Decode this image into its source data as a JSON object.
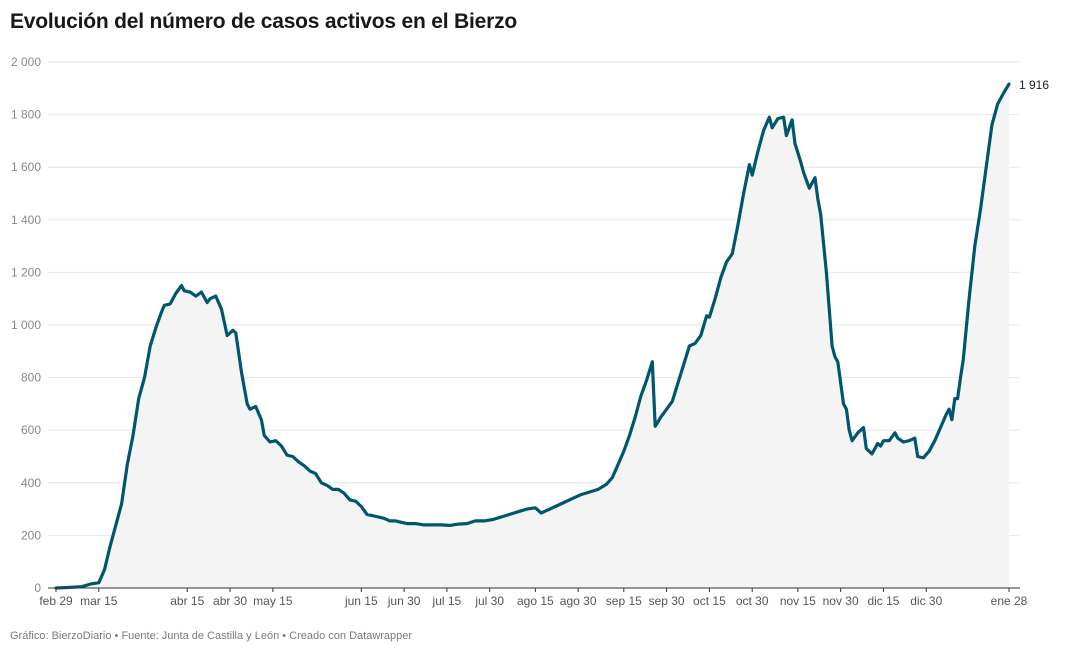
{
  "title": "Evolución del número de casos activos en el Bierzo",
  "footer": {
    "text": "Gráfico: BierzoDiario • Fuente: Junta de Castilla y León • Creado con Datawrapper"
  },
  "colors": {
    "line": "#00566e",
    "area": "#f4f4f4",
    "grid": "#e6e6e6",
    "axis": "#333333"
  },
  "chart_data": {
    "type": "area",
    "title": "Evolución del número de casos activos en el Bierzo",
    "xlabel": "",
    "ylabel": "",
    "ylim": [
      0,
      2000
    ],
    "xlim": [
      "2020-02-29",
      "2021-01-28"
    ],
    "grid": true,
    "legend": "none",
    "y_ticks": [
      0,
      200,
      400,
      600,
      800,
      1000,
      1200,
      1400,
      1600,
      1800,
      2000
    ],
    "y_tick_labels": [
      "0",
      "200",
      "400",
      "600",
      "800",
      "1 000",
      "1 200",
      "1 400",
      "1 600",
      "1 800",
      "2 000"
    ],
    "x_ticks": [
      {
        "date": "2020-02-29",
        "label": "feb 29"
      },
      {
        "date": "2020-03-15",
        "label": "mar 15"
      },
      {
        "date": "2020-04-15",
        "label": "abr 15"
      },
      {
        "date": "2020-04-30",
        "label": "abr 30"
      },
      {
        "date": "2020-05-15",
        "label": "may 15"
      },
      {
        "date": "2020-06-15",
        "label": "jun 15"
      },
      {
        "date": "2020-06-30",
        "label": "jun 30"
      },
      {
        "date": "2020-07-15",
        "label": "jul 15"
      },
      {
        "date": "2020-07-30",
        "label": "jul 30"
      },
      {
        "date": "2020-08-15",
        "label": "ago 15"
      },
      {
        "date": "2020-08-30",
        "label": "ago 30"
      },
      {
        "date": "2020-09-15",
        "label": "sep 15"
      },
      {
        "date": "2020-09-30",
        "label": "sep 30"
      },
      {
        "date": "2020-10-15",
        "label": "oct 15"
      },
      {
        "date": "2020-10-30",
        "label": "oct 30"
      },
      {
        "date": "2020-11-15",
        "label": "nov 15"
      },
      {
        "date": "2020-11-30",
        "label": "nov 30"
      },
      {
        "date": "2020-12-15",
        "label": "dic 15"
      },
      {
        "date": "2020-12-30",
        "label": "dic 30"
      },
      {
        "date": "2021-01-28",
        "label": "ene 28"
      }
    ],
    "end_label": "1 916",
    "series": [
      {
        "values": [
          [
            "2020-02-29",
            0
          ],
          [
            "2020-03-04",
            2
          ],
          [
            "2020-03-09",
            5
          ],
          [
            "2020-03-12",
            15
          ],
          [
            "2020-03-15",
            20
          ],
          [
            "2020-03-17",
            70
          ],
          [
            "2020-03-19",
            160
          ],
          [
            "2020-03-21",
            240
          ],
          [
            "2020-03-23",
            320
          ],
          [
            "2020-03-25",
            470
          ],
          [
            "2020-03-27",
            580
          ],
          [
            "2020-03-29",
            720
          ],
          [
            "2020-03-31",
            800
          ],
          [
            "2020-04-02",
            920
          ],
          [
            "2020-04-04",
            990
          ],
          [
            "2020-04-06",
            1050
          ],
          [
            "2020-04-07",
            1075
          ],
          [
            "2020-04-09",
            1080
          ],
          [
            "2020-04-11",
            1120
          ],
          [
            "2020-04-13",
            1150
          ],
          [
            "2020-04-14",
            1130
          ],
          [
            "2020-04-16",
            1125
          ],
          [
            "2020-04-18",
            1110
          ],
          [
            "2020-04-20",
            1125
          ],
          [
            "2020-04-22",
            1085
          ],
          [
            "2020-04-23",
            1100
          ],
          [
            "2020-04-25",
            1110
          ],
          [
            "2020-04-27",
            1060
          ],
          [
            "2020-04-29",
            960
          ],
          [
            "2020-05-01",
            980
          ],
          [
            "2020-05-02",
            970
          ],
          [
            "2020-05-04",
            820
          ],
          [
            "2020-05-06",
            700
          ],
          [
            "2020-05-07",
            680
          ],
          [
            "2020-05-09",
            690
          ],
          [
            "2020-05-11",
            640
          ],
          [
            "2020-05-12",
            580
          ],
          [
            "2020-05-14",
            555
          ],
          [
            "2020-05-16",
            560
          ],
          [
            "2020-05-18",
            540
          ],
          [
            "2020-05-20",
            505
          ],
          [
            "2020-05-22",
            500
          ],
          [
            "2020-05-24",
            480
          ],
          [
            "2020-05-26",
            465
          ],
          [
            "2020-05-28",
            445
          ],
          [
            "2020-05-30",
            435
          ],
          [
            "2020-06-01",
            400
          ],
          [
            "2020-06-03",
            390
          ],
          [
            "2020-06-05",
            375
          ],
          [
            "2020-06-07",
            375
          ],
          [
            "2020-06-09",
            360
          ],
          [
            "2020-06-11",
            335
          ],
          [
            "2020-06-13",
            330
          ],
          [
            "2020-06-15",
            310
          ],
          [
            "2020-06-17",
            280
          ],
          [
            "2020-06-19",
            275
          ],
          [
            "2020-06-21",
            270
          ],
          [
            "2020-06-23",
            265
          ],
          [
            "2020-06-25",
            255
          ],
          [
            "2020-06-27",
            255
          ],
          [
            "2020-06-29",
            250
          ],
          [
            "2020-07-01",
            245
          ],
          [
            "2020-07-04",
            245
          ],
          [
            "2020-07-07",
            240
          ],
          [
            "2020-07-10",
            240
          ],
          [
            "2020-07-13",
            240
          ],
          [
            "2020-07-16",
            238
          ],
          [
            "2020-07-19",
            243
          ],
          [
            "2020-07-22",
            245
          ],
          [
            "2020-07-25",
            255
          ],
          [
            "2020-07-28",
            255
          ],
          [
            "2020-07-31",
            260
          ],
          [
            "2020-08-03",
            270
          ],
          [
            "2020-08-06",
            280
          ],
          [
            "2020-08-09",
            290
          ],
          [
            "2020-08-12",
            300
          ],
          [
            "2020-08-15",
            305
          ],
          [
            "2020-08-17",
            285
          ],
          [
            "2020-08-19",
            295
          ],
          [
            "2020-08-22",
            310
          ],
          [
            "2020-08-25",
            325
          ],
          [
            "2020-08-28",
            340
          ],
          [
            "2020-08-31",
            355
          ],
          [
            "2020-09-03",
            365
          ],
          [
            "2020-09-06",
            375
          ],
          [
            "2020-09-09",
            395
          ],
          [
            "2020-09-11",
            420
          ],
          [
            "2020-09-13",
            470
          ],
          [
            "2020-09-15",
            520
          ],
          [
            "2020-09-17",
            580
          ],
          [
            "2020-09-19",
            650
          ],
          [
            "2020-09-21",
            730
          ],
          [
            "2020-09-23",
            790
          ],
          [
            "2020-09-25",
            860
          ],
          [
            "2020-09-26",
            615
          ],
          [
            "2020-09-28",
            650
          ],
          [
            "2020-09-30",
            680
          ],
          [
            "2020-10-02",
            710
          ],
          [
            "2020-10-04",
            780
          ],
          [
            "2020-10-06",
            850
          ],
          [
            "2020-10-08",
            920
          ],
          [
            "2020-10-10",
            930
          ],
          [
            "2020-10-12",
            960
          ],
          [
            "2020-10-14",
            1035
          ],
          [
            "2020-10-15",
            1030
          ],
          [
            "2020-10-17",
            1100
          ],
          [
            "2020-10-19",
            1180
          ],
          [
            "2020-10-21",
            1240
          ],
          [
            "2020-10-23",
            1270
          ],
          [
            "2020-10-25",
            1380
          ],
          [
            "2020-10-27",
            1500
          ],
          [
            "2020-10-29",
            1610
          ],
          [
            "2020-10-30",
            1570
          ],
          [
            "2020-11-01",
            1660
          ],
          [
            "2020-11-03",
            1740
          ],
          [
            "2020-11-05",
            1790
          ],
          [
            "2020-11-06",
            1750
          ],
          [
            "2020-11-08",
            1785
          ],
          [
            "2020-11-10",
            1790
          ],
          [
            "2020-11-11",
            1720
          ],
          [
            "2020-11-13",
            1780
          ],
          [
            "2020-11-14",
            1690
          ],
          [
            "2020-11-16",
            1620
          ],
          [
            "2020-11-17",
            1580
          ],
          [
            "2020-11-19",
            1520
          ],
          [
            "2020-11-21",
            1560
          ],
          [
            "2020-11-22",
            1480
          ],
          [
            "2020-11-23",
            1420
          ],
          [
            "2020-11-25",
            1200
          ],
          [
            "2020-11-27",
            920
          ],
          [
            "2020-11-28",
            880
          ],
          [
            "2020-11-29",
            860
          ],
          [
            "2020-12-01",
            700
          ],
          [
            "2020-12-02",
            680
          ],
          [
            "2020-12-03",
            600
          ],
          [
            "2020-12-04",
            560
          ],
          [
            "2020-12-06",
            590
          ],
          [
            "2020-12-08",
            610
          ],
          [
            "2020-12-09",
            530
          ],
          [
            "2020-12-11",
            510
          ],
          [
            "2020-12-13",
            550
          ],
          [
            "2020-12-14",
            540
          ],
          [
            "2020-12-15",
            560
          ],
          [
            "2020-12-17",
            560
          ],
          [
            "2020-12-19",
            590
          ],
          [
            "2020-12-20",
            570
          ],
          [
            "2020-12-22",
            555
          ],
          [
            "2020-12-24",
            560
          ],
          [
            "2020-12-26",
            570
          ],
          [
            "2020-12-27",
            500
          ],
          [
            "2020-12-29",
            495
          ],
          [
            "2020-12-31",
            520
          ],
          [
            "2021-01-02",
            560
          ],
          [
            "2021-01-04",
            610
          ],
          [
            "2021-01-06",
            660
          ],
          [
            "2021-01-07",
            680
          ],
          [
            "2021-01-08",
            640
          ],
          [
            "2021-01-09",
            720
          ],
          [
            "2021-01-10",
            720
          ],
          [
            "2021-01-11",
            800
          ],
          [
            "2021-01-12",
            870
          ],
          [
            "2021-01-14",
            1100
          ],
          [
            "2021-01-16",
            1300
          ],
          [
            "2021-01-18",
            1440
          ],
          [
            "2021-01-20",
            1600
          ],
          [
            "2021-01-22",
            1760
          ],
          [
            "2021-01-24",
            1840
          ],
          [
            "2021-01-26",
            1880
          ],
          [
            "2021-01-28",
            1916
          ]
        ]
      }
    ]
  }
}
